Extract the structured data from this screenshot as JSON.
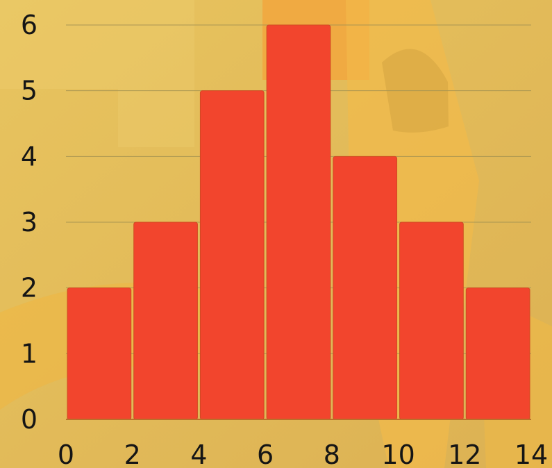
{
  "chart_data": {
    "type": "bar",
    "title": "",
    "xlabel": "",
    "ylabel": "",
    "bins": [
      {
        "x0": 0,
        "x1": 2,
        "count": 2
      },
      {
        "x0": 2,
        "x1": 4,
        "count": 3
      },
      {
        "x0": 4,
        "x1": 6,
        "count": 5
      },
      {
        "x0": 6,
        "x1": 8,
        "count": 6
      },
      {
        "x0": 8,
        "x1": 10,
        "count": 4
      },
      {
        "x0": 10,
        "x1": 12,
        "count": 3
      },
      {
        "x0": 12,
        "x1": 14,
        "count": 2
      }
    ],
    "x_ticks": [
      "0",
      "2",
      "4",
      "6",
      "8",
      "10",
      "12",
      "14"
    ],
    "y_ticks": [
      "0",
      "1",
      "2",
      "3",
      "4",
      "5",
      "6"
    ],
    "xlim": [
      0,
      14
    ],
    "ylim": [
      0,
      6
    ],
    "grid": true,
    "colors": {
      "bar": "#f2452d",
      "background": "#e1bd5e",
      "text": "#151515"
    }
  }
}
